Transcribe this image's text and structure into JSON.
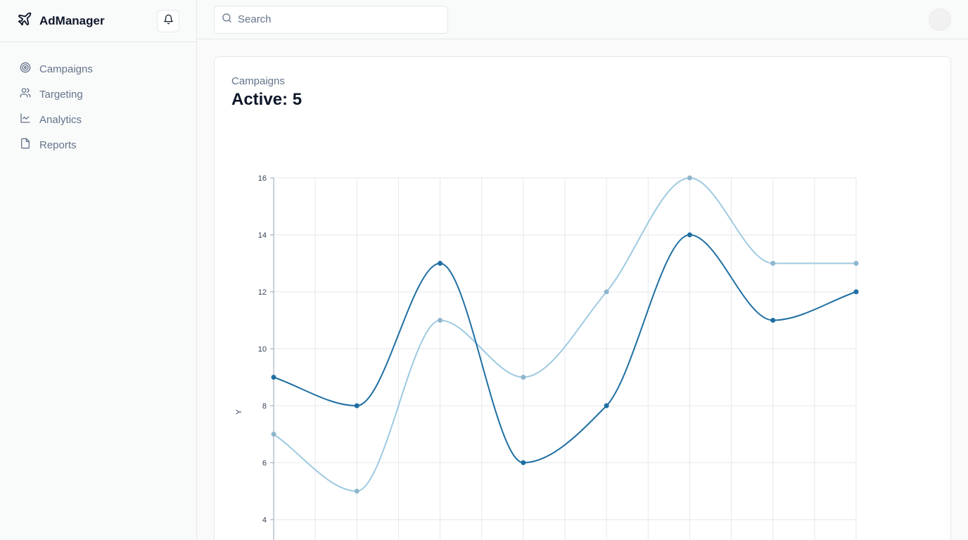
{
  "sidebar": {
    "brand": "AdManager",
    "items": [
      {
        "label": "Campaigns",
        "icon": "target-icon"
      },
      {
        "label": "Targeting",
        "icon": "users-icon"
      },
      {
        "label": "Analytics",
        "icon": "line-chart-icon"
      },
      {
        "label": "Reports",
        "icon": "file-icon"
      }
    ]
  },
  "header": {
    "search_placeholder": "Search"
  },
  "card": {
    "label": "Campaigns",
    "value": "Active: 5"
  },
  "colors": {
    "series_dark": "#1f6fa3",
    "series_light": "#9ecae1"
  },
  "chart_data": {
    "type": "line",
    "ylabel": "Y",
    "ylim": [
      4,
      16
    ],
    "yticks": [
      4,
      6,
      8,
      10,
      12,
      14,
      16
    ],
    "x": [
      0,
      1,
      2,
      3,
      4,
      5,
      6,
      7
    ],
    "series": [
      {
        "values": [
          9,
          8,
          13,
          6,
          8,
          14,
          11,
          12
        ]
      },
      {
        "values": [
          7,
          5,
          11,
          9,
          12,
          16,
          13,
          13
        ]
      }
    ],
    "grid": true
  }
}
